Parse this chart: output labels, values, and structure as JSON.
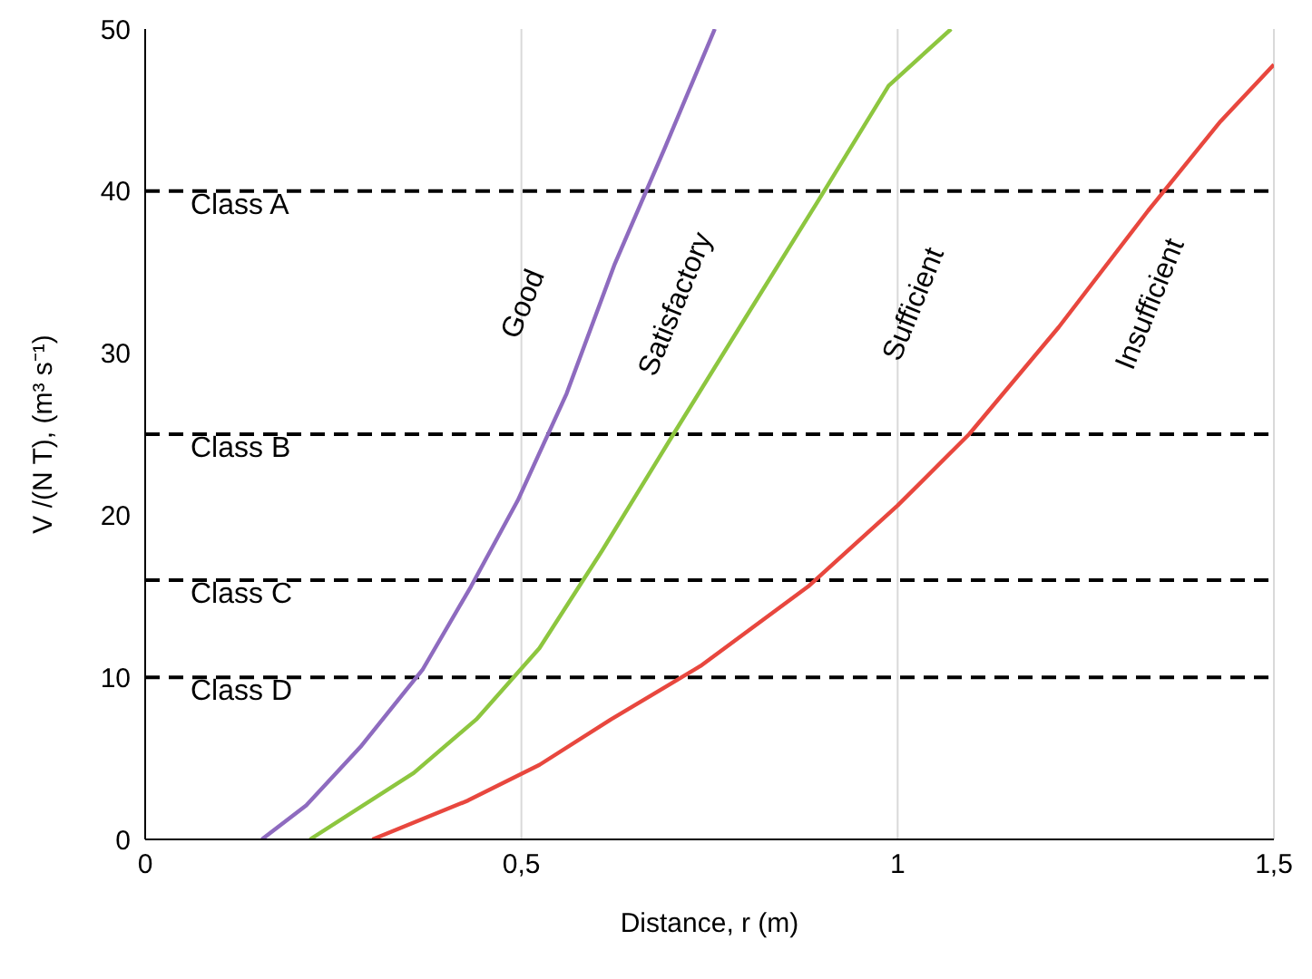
{
  "chart_data": {
    "type": "line",
    "xlabel": "Distance, r (m)",
    "ylabel": "V /(N T), (m³ s⁻¹)",
    "xlim": [
      0,
      1.5
    ],
    "xticks": [
      0,
      {
        "value": 0.5,
        "label": "0,5"
      },
      1,
      {
        "value": 1.5,
        "label": "1,5"
      }
    ],
    "ylim": [
      0,
      50
    ],
    "yticks": [
      0,
      10,
      20,
      30,
      40,
      50
    ],
    "grid": "x",
    "legend": false,
    "marker": "none",
    "line_style": "solid",
    "series": [
      {
        "color": "#8e6bbf",
        "x": [
          0.155,
          0.214,
          0.286,
          0.369,
          0.433,
          0.495,
          0.56,
          0.624,
          0.69,
          0.757
        ],
        "values": [
          0,
          2.1,
          5.7,
          10.5,
          15.6,
          20.9,
          27.5,
          35.5,
          42.6,
          50
        ]
      },
      {
        "color": "#8dc63f",
        "x": [
          0.219,
          0.357,
          0.44,
          0.524,
          0.607,
          0.702,
          0.798,
          0.893,
          0.988,
          1.071
        ],
        "values": [
          0,
          4.1,
          7.4,
          11.8,
          17.8,
          25,
          32.2,
          39.3,
          46.5,
          50
        ]
      },
      {
        "color": "#e8473e",
        "x": [
          0.302,
          0.429,
          0.524,
          0.619,
          0.738,
          0.881,
          1.0,
          1.095,
          1.214,
          1.333,
          1.429,
          1.5
        ],
        "values": [
          0,
          2.4,
          4.6,
          7.4,
          10.7,
          15.6,
          20.6,
          25,
          31.6,
          38.8,
          44.3,
          47.8
        ]
      }
    ],
    "annotations": [
      "Good",
      "Satisfactory",
      "Sufficient",
      "Insufficient"
    ],
    "ref_lines": [
      {
        "axis": "y",
        "value": 40,
        "label": "Class A",
        "color": "#000000",
        "line_style": "dashed"
      },
      {
        "axis": "y",
        "value": 25,
        "label": "Class B",
        "color": "#000000",
        "line_style": "dashed"
      },
      {
        "axis": "y",
        "value": 16,
        "label": "Class C",
        "color": "#000000",
        "line_style": "dashed"
      },
      {
        "axis": "y",
        "value": 10,
        "label": "Class D",
        "color": "#000000",
        "line_style": "dashed"
      }
    ]
  }
}
